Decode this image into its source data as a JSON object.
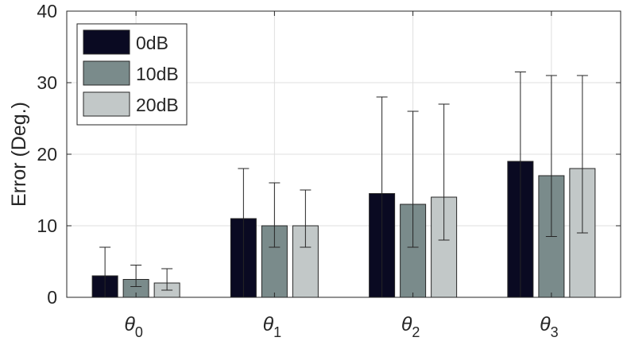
{
  "chart_data": {
    "type": "bar",
    "title": "",
    "xlabel": "",
    "ylabel": "Error (Deg.)",
    "ylim": [
      0,
      40
    ],
    "yticks": [
      "0",
      "10",
      "20",
      "30",
      "40"
    ],
    "grid": true,
    "legend_position": "top-left",
    "categories": [
      {
        "symbol": "θ",
        "subscript": "0"
      },
      {
        "symbol": "θ",
        "subscript": "1"
      },
      {
        "symbol": "θ",
        "subscript": "2"
      },
      {
        "symbol": "θ",
        "subscript": "3"
      }
    ],
    "series": [
      {
        "name": "0dB",
        "color": "#0a0a22",
        "values": [
          3,
          11,
          14.5,
          19
        ],
        "error_low": [
          3,
          11,
          14.5,
          19
        ],
        "error_high": [
          7,
          18,
          28,
          31.5
        ]
      },
      {
        "name": "10dB",
        "color": "#7a8b8b",
        "values": [
          2.5,
          10,
          13,
          17
        ],
        "error_low": [
          1,
          3,
          6,
          8.5
        ],
        "error_high": [
          4.5,
          16,
          26,
          31
        ]
      },
      {
        "name": "20dB",
        "color": "#c2c8c8",
        "values": [
          2,
          10,
          14,
          18
        ],
        "error_low": [
          1,
          3,
          6,
          9
        ],
        "error_high": [
          4,
          15,
          27,
          31
        ]
      }
    ]
  }
}
